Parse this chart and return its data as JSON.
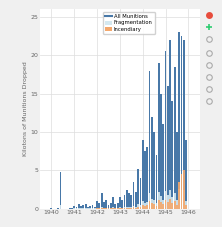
{
  "title": "",
  "xlabel": "",
  "ylabel": "Kilotons of Munitions Dropped",
  "xlim": [
    1939.5,
    1946.5
  ],
  "ylim": [
    0,
    26
  ],
  "yticks": [
    0,
    5,
    10,
    15,
    20,
    25
  ],
  "xtick_labels": [
    "1940",
    "1941",
    "1942",
    "1943",
    "1944",
    "1945",
    "1946"
  ],
  "xtick_positions": [
    1940,
    1941,
    1942,
    1943,
    1944,
    1945,
    1946
  ],
  "background_color": "#f0f0f0",
  "plot_bg_color": "#ffffff",
  "grid_color": "#dddddd",
  "bar_color_all": "#4878a8",
  "bar_color_frag": "#d4e8f0",
  "bar_color_inc": "#f4a86c",
  "legend_entries": [
    "All Munitions",
    "Fragmentation",
    "Incendiary"
  ],
  "legend_colors": [
    "#4878a8",
    "#d4e8f0",
    "#f4a86c"
  ],
  "toolbar_color": "#cccccc",
  "seed": 42,
  "data_years": [
    1940.0,
    1940.1,
    1940.2,
    1940.3,
    1940.4,
    1940.5,
    1940.6,
    1940.7,
    1940.8,
    1940.9,
    1941.0,
    1941.1,
    1941.2,
    1941.3,
    1941.4,
    1941.5,
    1941.6,
    1941.7,
    1941.8,
    1941.9,
    1942.0,
    1942.1,
    1942.2,
    1942.3,
    1942.4,
    1942.5,
    1942.6,
    1942.7,
    1942.8,
    1942.9,
    1943.0,
    1943.1,
    1943.2,
    1943.3,
    1943.4,
    1943.5,
    1943.6,
    1943.7,
    1943.8,
    1943.9,
    1944.0,
    1944.1,
    1944.2,
    1944.3,
    1944.4,
    1944.5,
    1944.6,
    1944.7,
    1944.8,
    1944.9,
    1945.0,
    1945.1,
    1945.2,
    1945.3,
    1945.4,
    1945.5,
    1945.6,
    1945.7,
    1945.8,
    1945.9
  ],
  "all_munitions": [
    0.05,
    0.03,
    0.02,
    0.05,
    4.8,
    0.03,
    0.04,
    0.02,
    0.1,
    0.05,
    0.4,
    0.3,
    0.6,
    0.4,
    0.5,
    0.6,
    0.3,
    0.4,
    0.5,
    0.3,
    1.0,
    0.8,
    2.0,
    0.9,
    1.2,
    0.5,
    0.8,
    1.5,
    0.6,
    0.7,
    1.5,
    1.2,
    1.8,
    2.5,
    2.0,
    1.8,
    3.5,
    2.2,
    5.2,
    4.0,
    9.0,
    7.5,
    8.0,
    18.0,
    12.0,
    10.0,
    7.0,
    19.0,
    15.0,
    11.0,
    20.5,
    16.0,
    22.0,
    14.0,
    18.5,
    10.0,
    23.0,
    22.5,
    22.0,
    9.0
  ],
  "fragmentation": [
    0.01,
    0.01,
    0.01,
    0.01,
    0.5,
    0.01,
    0.01,
    0.01,
    0.01,
    0.01,
    0.05,
    0.05,
    0.05,
    0.05,
    0.05,
    0.05,
    0.05,
    0.05,
    0.05,
    0.05,
    0.1,
    0.1,
    0.2,
    0.1,
    0.1,
    0.1,
    0.1,
    0.2,
    0.1,
    0.1,
    0.2,
    0.1,
    0.2,
    0.3,
    0.2,
    0.2,
    0.4,
    0.3,
    0.6,
    0.5,
    1.0,
    0.8,
    0.9,
    2.0,
    1.3,
    1.1,
    0.8,
    2.2,
    1.7,
    1.2,
    2.3,
    1.8,
    2.5,
    1.6,
    2.1,
    1.1,
    2.6,
    2.5,
    2.4,
    1.0
  ],
  "incendiary": [
    0.005,
    0.005,
    0.005,
    0.005,
    0.01,
    0.005,
    0.005,
    0.005,
    0.005,
    0.005,
    0.02,
    0.02,
    0.02,
    0.02,
    0.02,
    0.02,
    0.02,
    0.02,
    0.02,
    0.02,
    0.05,
    0.05,
    0.05,
    0.05,
    0.05,
    0.05,
    0.05,
    0.05,
    0.05,
    0.05,
    0.1,
    0.1,
    0.1,
    0.15,
    0.1,
    0.1,
    0.2,
    0.15,
    0.3,
    0.25,
    0.5,
    0.4,
    0.5,
    1.0,
    0.7,
    0.6,
    0.4,
    1.1,
    0.85,
    0.6,
    1.2,
    0.9,
    1.3,
    0.8,
    1.05,
    0.55,
    3.5,
    4.5,
    5.0,
    0.5
  ]
}
